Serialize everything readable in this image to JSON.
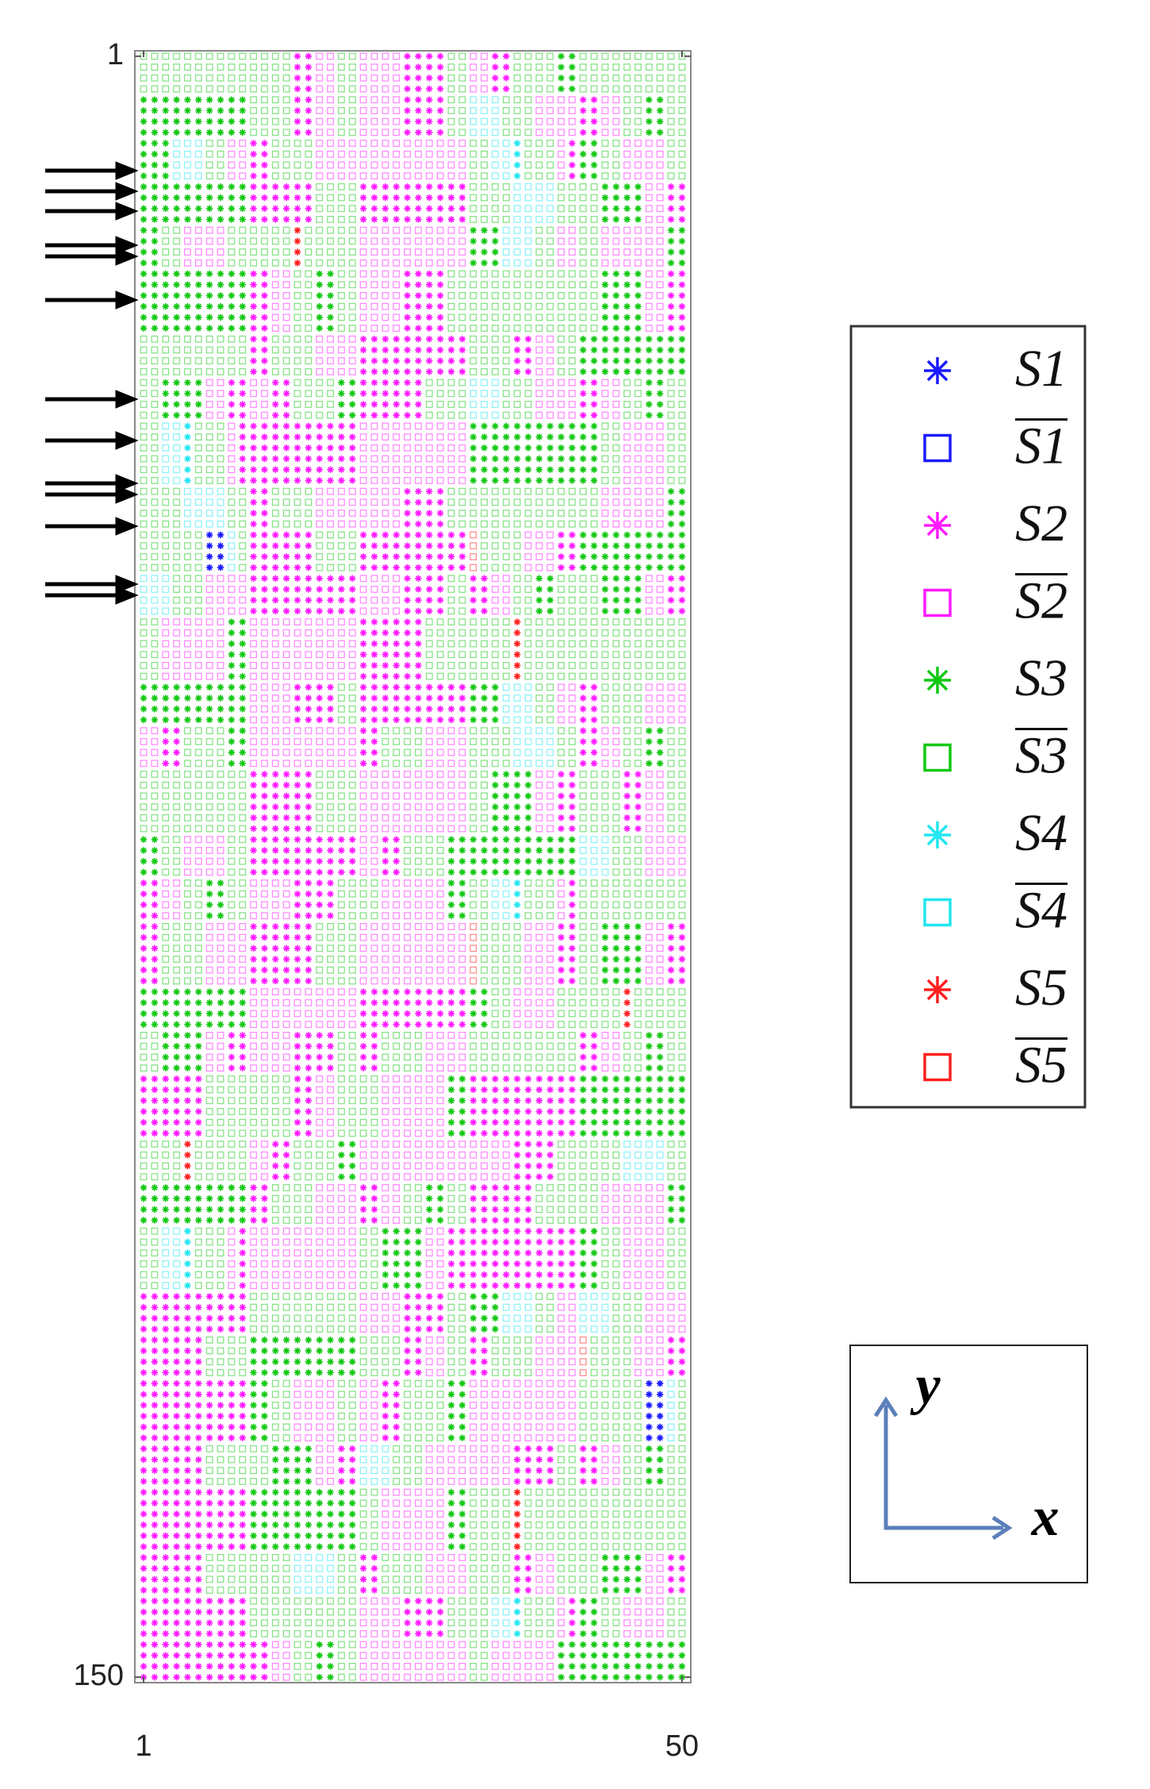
{
  "chart_data": {
    "type": "state-grid",
    "xlim": [
      0.2,
      50.8
    ],
    "ylim": [
      150.5,
      0.5
    ],
    "xticks": [
      1,
      50
    ],
    "yticks": [
      1,
      150
    ],
    "series": [
      {
        "name": "S1",
        "overline": false,
        "marker": "star",
        "color": "#1a1aff"
      },
      {
        "name": "S1",
        "overline": true,
        "marker": "square",
        "color": "#1a1aff"
      },
      {
        "name": "S2",
        "overline": false,
        "marker": "star",
        "color": "#ff1aff"
      },
      {
        "name": "S2",
        "overline": true,
        "marker": "square",
        "color": "#ff1aff"
      },
      {
        "name": "S3",
        "overline": false,
        "marker": "star",
        "color": "#12c812"
      },
      {
        "name": "S3",
        "overline": true,
        "marker": "square",
        "color": "#12c812"
      },
      {
        "name": "S4",
        "overline": false,
        "marker": "star",
        "color": "#22e6f0"
      },
      {
        "name": "S4",
        "overline": true,
        "marker": "square",
        "color": "#22e6f0"
      },
      {
        "name": "S5",
        "overline": false,
        "marker": "star",
        "color": "#ff2020"
      },
      {
        "name": "S5",
        "overline": true,
        "marker": "square",
        "color": "#ff2020"
      }
    ],
    "axis_labels": {
      "x": "x",
      "y": "y"
    },
    "rows": [
      "ccccccccccccccBBbbccbbbbBBBBccbbBBccccCCcccccccccc",
      "ccccccccccccccBBbbccbbbbBBBBccbbBBccccCCcccccccccc",
      "ccccccccccccccBBbbccbbbbBBBBccbbBBccccCCcccccccccc",
      "ccccccccccccccBBbbccbbbbBBBBccbbBBccccCCcccccccccc",
      "CCCCCCCCCCccccBBbbccbbbbBBBBccdddcccbbbbBBbbccCCcc",
      "CCCCCCCCCCccccBBbbccbbbbBBBBccdddcccbbbbBBbbccCCcc",
      "CCCCCCCCCCccccBBbbccbbbbBBBBccdddcccbbbbBBbbccCCcc",
      "CCCCCCCCCCccccBBbbccbbbbBBBBccdddcccbbbbBBbbccCCcc",
      "CCCdddccbbBBccccbbbbbbbbbbbbbbccddDcccbBCCccbbbbcc",
      "CCCdddccbbBBccccbbbbbbbbbbbbbbccddDcccbBCCccbbbbcc",
      "CCCdddccbbBBccccbbbbbbbbbbbbbbccddDcccbBCCccbbbbcc",
      "CCCdddccbbBBccccbbbbbbbbbbbbbbccddDcccbBCCccbbbbcc",
      "CCCCCCCCCCBBBBBBccccBBBBBBBBBBccccddddccccCCCCbbBB",
      "CCCCCCCCCCBBBBBBccccBBBBBBBBBBccccddddccccCCCCbbBB",
      "CCCCCCCCCCBBBBBBccccBBBBBBBBBBccccddddccccCCCCbbBB",
      "CCCCCCCCCCBBBBBBccccBBBBBBBBBBccccddddccccCCCCbbBB",
      "CCccbbbbccccccEcccccbbbbbbbbbbCCCdddccbbccbbbbbbCC",
      "CCccbbbbccccccEcccccbbbbbbbbbbCCCdddccbbccbbbbbbCC",
      "CCccbbbbccccccEcccccbbbbbbbbbbCCCdddccbbccbbbbbbCC",
      "CCccbbbbccccccEcccccbbbbbbbbbbCCCdddccbbccbbbbbbCC",
      "CCCCCCCCCCBBbbccCCccbbbbBBBBccccccccccccccCCCCbbBB",
      "CCCCCCCCCCBBbbccCCccbbbbBBBBccccccccccccccCCCCbbBB",
      "CCCCCCCCCCBBbbccCCccbbbbBBBBccccccccccccccCCCCbbBB",
      "CCCCCCCCCCBBbbccCCccbbbbBBBBccccccccccccccCCCCbbBB",
      "CCCCCCCCCCBBbbccCCccbbbbBBBBccccccccccccccCCCCbbBB",
      "CCCCCCCCCCBBbbccCCccbbbbBBBBccccccccccccccCCCCbbBB",
      "ccccccccccBBccccbbbbBBBBBBBBBBccccBBbbccCCCCCCCCCC",
      "ccccccccccBBccccbbbbBBBBBBBBBBccccBBbbccCCCCCCCCCC",
      "ccccccccccBBccccbbbbBBBBBBBBBBccccBBbbccCCCCCCCCCC",
      "ccccccccccBBccccbbbbBBBBBBBBBBccccBBbbccCCCCCCCCCC",
      "ccCCCCbbBBbbBBccccCCBBBBBBccccdddcccbbbbBBbbccCCcc",
      "ccCCCCbbBBbbBBccccCCBBBBBBccccdddcccbbbbBBbbccCCcc",
      "ccCCCCbbBBbbBBccccCCBBBBBBccccdddcccbbbbBBbbccCCcc",
      "ccCCCCbbBBbbBBccccCCBBBBBBccccdddcccbbbbBBbbccCCcc",
      "ccddDcccbBBBBBBBBBBBbbbbbbbbbbCCCCCCCCCCCCccbbbbcc",
      "ccddDcccbBBBBBBBBBBBbbbbbbbbbbCCCCCCCCCCCCccbbbbcc",
      "ccddDcccbBBBBBBBBBBBbbbbbbbbbbCCCCCCCCCCCCccbbbbcc",
      "ccddDcccbBBBBBBBBBBBbbbbbbbbbbCCCCCCCCCCCCccbbbbcc",
      "ccddDcccbBBBBBBBBBBBbbbbbbbbbbCCCCCCCCCCCCccbbbbcc",
      "ccddDcccbBBBBBBBBBBBbbbbbbbbbbCCCCCCCCCCCCccbbbbcc",
      "ccccddddccBBccccbbbbbbbbBBBBccccccccccccccbbbbbbCC",
      "ccccddddccBBccccbbbbbbbbBBBBccccccccccccccbbbbbbCC",
      "ccccddddccBBccccbbbbbbbbBBBBccccccccccccccbbbbbbCC",
      "ccccddddccBBccccbbbbbbbbBBBBccccccccccccccbbbbbbCC",
      "ccccccAAdcBBBBBBccccBBBBBBBBBBeccccbbbBBCCCCCCCCCC",
      "ccccccAAdcBBBBBBccccBBBBBBBBBBeccccbbbBBCCCCCCCCCC",
      "ccccccAAdcBBBBBBccccBBBBBBBBBBeccccbbbBBCCCCCCCCCC",
      "ccccccAAdcBBBBBBccccBBBBBBBBBBeccccbbbBBCCCCCCCCCC",
      "dddcccbbbbBBBBBBBBBBbbbbBBBBccBBbbccCCccccCCCCbbBB",
      "dddcccbbbbBBBBBBBBBBbbbbBBBBccBBbbccCCccccCCCCbbBB",
      "dddcccbbbbBBBBBBBBBBbbbbBBBBccBBbbccCCccccCCCCbbBB",
      "dddcccbbbbBBBBBBBBBBbbbbBBBBccBBbbccCCccccCCCCbbBB",
      "ccbbbbbbCCbbbbbbbbbbBBBBBBccccccccEccccccccccccccc",
      "ccbbbbbbCCbbbbbbbbbbBBBBBBccccccccEccccccccccccccc",
      "ccbbbbbbCCbbbbbbbbbbBBBBBBccccccccEccccccccccccccc",
      "ccbbbbbbCCbbbbbbbbbbBBBBBBccccccccEccccccccccccccc",
      "ccbbbbbbCCbbbbbbbbbbBBBBBBccccccccEccccccccccccccc",
      "ccbbbbbbCCbbbbbbbbbbBBBBBBccccccccEccccccccccccccc",
      "CCCCCCCCCCbbbbBBBBccBBBBBBBBBBCCCdddccbbBBccccbbbb",
      "CCCCCCCCCCbbbbBBBBccBBBBBBBBBBCCCdddccbbBBccccbbbb",
      "CCCCCCCCCCbbbbBBBBccBBBBBBBBBBCCCdddccbbBBccccbbbb",
      "CCCCCCCCCCbbbbBBBBccBBBBBBBBBBCCCdddccbbBBccccbbbb",
      "bbBBccccCCbbbbbbbbbbBBccccbbbbccccddddccBBbbccCCcc",
      "bbBBccccCCbbbbbbbbbbBBccccbbbbccccddddccBBbbccCCcc",
      "bbBBccccCCbbbbbbbbbbBBccccbbbbccccddddccBBbbccCCcc",
      "bbBBccccCCbbbbbbbbbbBBccccbbbbccccddddccBBbbccCCcc",
      "ccccccccccBBBBBBccccbbbbbbbbbbccCCCCbbBBccccBBbbcc",
      "ccccccccccBBBBBBccccbbbbbbbbbbccCCCCbbBBccccBBbbcc",
      "ccccccccccBBBBBBccccbbbbbbbbbbccCCCCbbBBccccBBbbcc",
      "ccccccccccBBBBBBccccbbbbbbbbbbccCCCCbbBBccccBBbbcc",
      "ccccccccccBBBBBBccccbbbbbbbbbbccCCCCbbBBccccBBbbcc",
      "ccccccccccBBBBBBccccbbbbbbbbbbccCCCCbbBBccccBBbbcc",
      "CCccbbbbccBBBBBBBBBBbbBBccccCCCCCCCCCCCCdddcccbbbb",
      "CCccbbbbccBBBBBBBBBBbbBBccccCCCCCCCCCCCCdddcccbbbb",
      "CCccbbbbccBBBBBBBBBBbbBBccccCCCCCCCCCCCCdddcccbbbb",
      "CCccbbbbccBBBBBBBBBBbbBBccccCCCCCCCCCCCCdddcccbbbb",
      "BBbbccCCccbbbbBBBBccccbbbbbbCCccddDcccbBcccccccccc",
      "BBbbccCCccbbbbBBBBccccbbbbbbCCccddDcccbBcccccccccc",
      "BBbbccCCccbbbbBBBBccccbbbbbbCCccddDcccbBcccccccccc",
      "BBbbccCCccbbbbBBBBccccbbbbbbCCccddDcccbBcccccccccc",
      "BBccccbbbbBBBBBBccccbbbbbbbbbbeccccbbbBBccCCCCbbBB",
      "BBccccbbbbBBBBBBccccbbbbbbbbbbeccccbbbBBccCCCCbbBB",
      "BBccccbbbbBBBBBBccccbbbbbbbbbbeccccbbbBBccCCCCbbBB",
      "BBccccbbbbBBBBBBccccbbbbbbbbbbeccccbbbBBccCCCCbbBB",
      "BBccccbbbbBBBBBBccccbbbbbbbbbbeccccbbbBBccCCCCbbBB",
      "BBccccbbbbBBBBBBccccbbbbbbbbbbeccccbbbBBccCCCCbbBB",
      "CCCCCCCCCCbbbbbbbbbbBBBBBBBBBBCCccbbbbccccccEccccc",
      "CCCCCCCCCCbbbbbbbbbbBBBBBBBBBBCCccbbbbccccccEccccc",
      "CCCCCCCCCCbbbbbbbbbbBBBBBBBBBBCCccbbbbccccccEccccc",
      "CCCCCCCCCCbbbbbbbbbbBBBBBBBBBBCCccbbbbccccccEccccc",
      "ccCCCCbbBBbbbbBBBBccBBccccbbbbccccccccccBBbbccCCcc",
      "ccCCCCbbBBbbbbBBBBccBBccccbbbbccccccccccBBbbccCCcc",
      "ccCCCCbbBBbbbbBBBBccBBccccbbbbccccccccccBBbbccCCcc",
      "ccCCCCbbBBbbbbBBBBccBBccccbbbbccccccccccBBbbccCCcc",
      "BBBBBBccccccccBBbbccccbbbbbbCCBBBBBBBBBBCCCCCCCCCC",
      "BBBBBBccccccccBBbbccccbbbbbbCCBBBBBBBBBBCCCCCCCCCC",
      "BBBBBBccccccccBBbbccccbbbbbbCCBBBBBBBBBBCCCCCCCCCC",
      "BBBBBBccccccccBBbbccccbbbbbbCCBBBBBBBBBBCCCCCCCCCC",
      "BBBBBBccccccccBBbbccccbbbbbbCCBBBBBBBBBBCCCCCCCCCC",
      "BBBBBBccccccccBBbbccccbbbbbbCCBBBBBBBBBBCCCCCCCCCC",
      "ccccEcccccbbBBccccCCbbbbbbbbbbbbbbBBBBccccccddddcc",
      "ccccEcccccbbBBccccCCbbbbbbbbbbbbbbBBBBccccccddddcc",
      "ccccEcccccbbBBccccCCbbbbbbbbbbbbbbBBBBccccccddddcc",
      "ccccEcccccbbBBccccCCbbbbbbbbbbbbbbBBBBccccccddddcc",
      "CCCCCCCCCCBBccccbbbbBBbbccCCccBBBBBBccccccbbbbbbCC",
      "CCCCCCCCCCBBccccbbbbBBbbccCCccBBBBBBccccccbbbbbbCC",
      "CCCCCCCCCCBBccccbbbbBBbbccCCccBBBBBBccccccbbbbbbCC",
      "CCCCCCCCCCBBccccbbbbBBbbccCCccBBBBBBccccccbbbbbbCC",
      "ccddDcccbBbbbbbbbbbbccCCCCbbBBBBBBBBBBBBCCccbbbbcc",
      "ccddDcccbBbbbbbbbbbbccCCCCbbBBBBBBBBBBBBCCccbbbbcc",
      "ccddDcccbBbbbbbbbbbbccCCCCbbBBBBBBBBBBBBCCccbbbbcc",
      "ccddDcccbBbbbbbbbbbbccCCCCbbBBBBBBBBBBBBCCccbbbbcc",
      "ccddDcccbBbbbbbbbbbbccCCCCbbBBBBBBBBBBBBCCccbbbbcc",
      "ccddDcccbBbbbbbbbbbbccCCCCbbBBBBBBBBBBBBCCccbbbbcc",
      "BBBBBBBBBBccccccccccbbbbBBBBccCCCdddccbbdddcccbbbb",
      "BBBBBBBBBBccccccccccbbbbBBBBccCCCdddccbbdddcccbbbb",
      "BBBBBBBBBBccccccccccbbbbBBBBccCCCdddccbbdddcccbbbb",
      "BBBBBBBBBBccccccccccbbbbBBBBccCCCdddccbbdddcccbbbb",
      "BBBBBBccccCCCCCCCCCCccccBBbbccBBccccbbbbeccccbbbBB",
      "BBBBBBccccCCCCCCCCCCccccBBbbccBBccccbbbbeccccbbbBB",
      "BBBBBBccccCCCCCCCCCCccccBBbbccBBccccbbbbeccccbbbBB",
      "BBBBBBccccCCCCCCCCCCccccBBbbccBBccccbbbbeccccbbbBB",
      "BBBBBBBBBBCCccbbbbccbbBBccccCCbbbbbbbbbbccccccAAdc",
      "BBBBBBBBBBCCccbbbbccbbBBccccCCbbbbbbbbbbccccccAAdc",
      "BBBBBBBBBBCCccbbbbccbbBBccccCCbbbbbbbbbbccccccAAdc",
      "BBBBBBBBBBCCccbbbbccbbBBccccCCbbbbbbbbbbccccccAAdc",
      "BBBBBBBBBBCCccbbbbccbbBBccccCCbbbbbbbbbbccccccAAdc",
      "BBBBBBBBBBCCccbbbbccbbBBccccCCbbbbbbbbbbccccccAAdc",
      "BBBBBBccccccCCCCbbBBdddcccbbbbbbbbBBBBccBBbbccCCcc",
      "BBBBBBccccccCCCCbbBBdddcccbbbbbbbbBBBBccBBbbccCCcc",
      "BBBBBBccccccCCCCbbBBdddcccbbbbbbbbBBBBccBBbbccCCcc",
      "BBBBBBccccccCCCCbbBBdddcccbbbbbbbbBBBBccBBbbccCCcc",
      "BBBBBBBBBBCCCCCCCCCCccbbbbbbCCccccEccccccccccccccc",
      "BBBBBBBBBBCCCCCCCCCCccbbbbbbCCccccEccccccccccccccc",
      "BBBBBBBBBBCCCCCCCCCCccbbbbbbCCccccEccccccccccccccc",
      "BBBBBBBBBBCCCCCCCCCCccbbbbbbCCccccEccccccccccccccc",
      "BBBBBBBBBBCCCCCCCCCCccbbbbbbCCccccEccccccccccccccc",
      "BBBBBBBBBBCCCCCCCCCCccbbbbbbCCccccEccccccccccccccc",
      "BBBBBBccccccccddddccBBccccbbbbccccBBbbccccCCCCbbBB",
      "BBBBBBccccccccddddccBBccccbbbbccccBBbbccccCCCCbbBB",
      "BBBBBBccccccccddddccBBccccbbbbccccBBbbccccCCCCbbBB",
      "BBBBBBccccccccddddccBBccccbbbbccccBBbbccccCCCCbbBB",
      "BBBBBBBBBBccccccccccbbbbBBBBccccddDcccbBCCccbbbbcc",
      "BBBBBBBBBBccccccccccbbbbBBBBccccddDcccbBCCccbbbbcc",
      "BBBBBBBBBBccccccccccbbbbBBBBccccddDcccbBCCccbbbbcc",
      "BBBBBBBBBBccccccccccbbbbBBBBccccddDcccbBCCccbbbbcc",
      "BBBBBBBBBBBBbbccCCccbbbbbbbbbbccbbbbbbCCCCCCCCCCCC",
      "BBBBBBBBBBBBbbccCCccbbbbbbbbbbccbbbbbbCCCCCCCCCCCC",
      "BBBBBBBBBBBBbbccCCccbbbbbbbbbbccbbbbbbCCCCCCCCCCCC",
      "BBBBBBBBBBBBbbccCCccbbbbbbbbbbccbbbbbbCCCCCCCCCCCC"
    ]
  }
}
